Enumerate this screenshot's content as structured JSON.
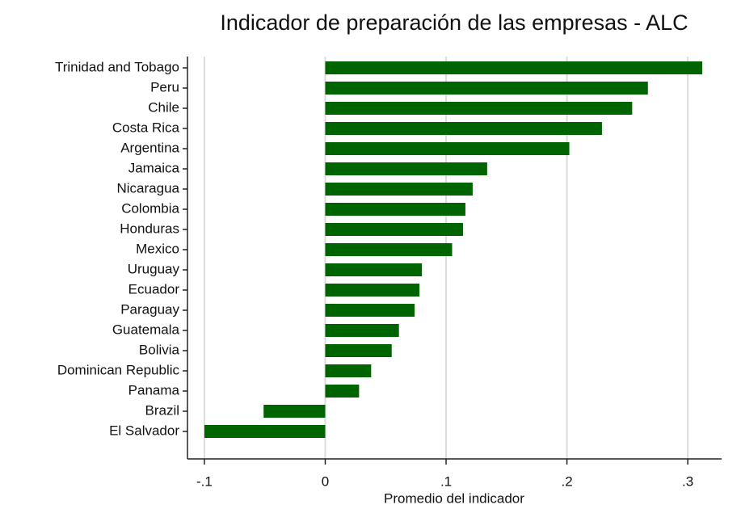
{
  "chart_data": {
    "type": "barh",
    "title": "Indicador de preparación de las empresas - ALC",
    "xlabel": "Promedio del indicador",
    "categories": [
      "Trinidad and Tobago",
      "Peru",
      "Chile",
      "Costa Rica",
      "Argentina",
      "Jamaica",
      "Nicaragua",
      "Colombia",
      "Honduras",
      "Mexico",
      "Uruguay",
      "Ecuador",
      "Paraguay",
      "Guatemala",
      "Bolivia",
      "Dominican Republic",
      "Panama",
      "Brazil",
      "El Salvador"
    ],
    "values": [
      0.312,
      0.267,
      0.254,
      0.229,
      0.202,
      0.134,
      0.122,
      0.116,
      0.114,
      0.105,
      0.08,
      0.078,
      0.074,
      0.061,
      0.055,
      0.038,
      0.028,
      -0.051,
      -0.1
    ],
    "color": "#006400",
    "xlim": [
      -0.114,
      0.328
    ],
    "xticks": [
      {
        "value": -0.1,
        "label": "-.1"
      },
      0,
      {
        "value": 0.1,
        "label": ".1"
      },
      {
        "value": 0.2,
        "label": ".2"
      },
      {
        "value": 0.3,
        "label": ".3"
      }
    ],
    "grid": true
  }
}
